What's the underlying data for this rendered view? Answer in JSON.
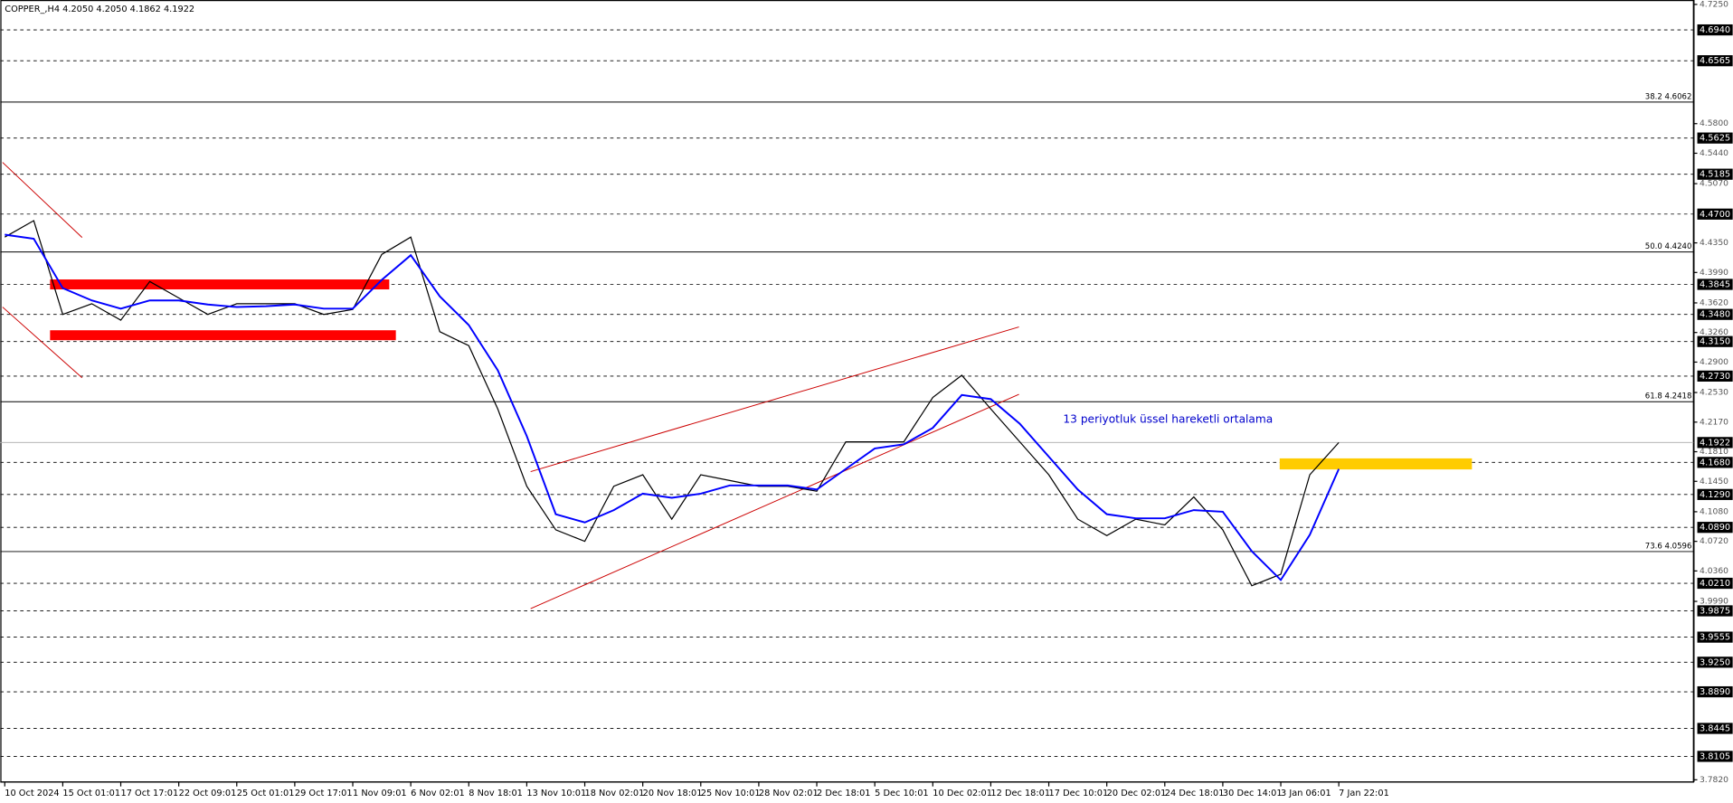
{
  "chart_data": {
    "type": "line",
    "title": "COPPER_,H4  4.2050 4.2050 4.1862 4.1922",
    "annotation": "13 periyotluk üssel hareketli ortalama",
    "categories": [
      "10 Oct 2024",
      null,
      "15 Oct 01:01",
      null,
      "17 Oct 17:01",
      null,
      "22 Oct 09:01",
      null,
      "25 Oct 01:01",
      null,
      "29 Oct 17:01",
      null,
      "1 Nov 09:01",
      null,
      "6 Nov 02:01",
      null,
      "8 Nov 18:01",
      null,
      "13 Nov 10:01",
      null,
      "18 Nov 02:01",
      null,
      "20 Nov 18:01",
      null,
      "25 Nov 10:01",
      null,
      "28 Nov 02:01",
      null,
      "2 Dec 18:01",
      null,
      "5 Dec 10:01",
      null,
      "10 Dec 02:01",
      null,
      "12 Dec 18:01",
      null,
      "17 Dec 10:01",
      null,
      "20 Dec 02:01",
      null,
      "24 Dec 18:01",
      null,
      "30 Dec 14:01",
      null,
      "3 Jan 06:01",
      null,
      "7 Jan 22:01",
      null,
      null,
      null,
      null,
      null,
      null,
      null,
      null,
      null,
      null,
      null
    ],
    "series": [
      {
        "color": "#000000",
        "values": [
          4.442,
          4.462,
          4.348,
          4.361,
          4.341,
          4.388,
          4.368,
          4.348,
          4.361,
          4.361,
          4.361,
          4.348,
          4.354,
          4.421,
          4.442,
          4.327,
          4.31,
          4.233,
          4.139,
          4.086,
          4.072,
          4.139,
          4.153,
          4.099,
          4.153,
          4.146,
          4.139,
          4.139,
          4.133,
          4.193,
          4.193,
          4.193,
          4.247,
          4.274,
          4.233,
          4.193,
          4.153,
          4.099,
          4.079,
          4.099,
          4.092,
          4.126,
          4.086,
          4.018,
          4.032,
          4.153,
          4.1922,
          null,
          null,
          null,
          null,
          null,
          null,
          null,
          null,
          null,
          null,
          null
        ]
      },
      {
        "color": "#0000ff",
        "values": [
          4.445,
          4.44,
          4.38,
          4.365,
          4.355,
          4.365,
          4.365,
          4.36,
          4.357,
          4.358,
          4.36,
          4.355,
          4.355,
          4.39,
          4.42,
          4.37,
          4.335,
          4.28,
          4.2,
          4.105,
          4.095,
          4.11,
          4.13,
          4.125,
          4.13,
          4.14,
          4.14,
          4.14,
          4.135,
          4.16,
          4.185,
          4.19,
          4.21,
          4.25,
          4.245,
          4.215,
          4.175,
          4.135,
          4.105,
          4.1,
          4.1,
          4.11,
          4.108,
          4.06,
          4.025,
          4.08,
          4.16,
          null,
          null,
          null,
          null,
          null,
          null,
          null,
          null,
          null,
          null,
          null
        ]
      }
    ],
    "ylim": [
      3.782,
      4.725
    ],
    "yticks": [
      {
        "value": 4.725,
        "label": "4.7250"
      },
      {
        "value": 4.58,
        "label": "4.5800"
      },
      {
        "value": 4.544,
        "label": "4.5440"
      },
      {
        "value": 4.507,
        "label": "4.5070"
      },
      {
        "value": 4.435,
        "label": "4.4350"
      },
      {
        "value": 4.399,
        "label": "4.3990"
      },
      {
        "value": 4.362,
        "label": "4.3620"
      },
      {
        "value": 4.326,
        "label": "4.3260"
      },
      {
        "value": 4.29,
        "label": "4.2900"
      },
      {
        "value": 4.253,
        "label": "4.2530"
      },
      {
        "value": 4.217,
        "label": "4.2170"
      },
      {
        "value": 4.181,
        "label": "4.1810"
      },
      {
        "value": 4.145,
        "label": "4.1450"
      },
      {
        "value": 4.108,
        "label": "4.1080"
      },
      {
        "value": 4.072,
        "label": "4.0720"
      },
      {
        "value": 4.036,
        "label": "4.0360"
      },
      {
        "value": 3.999,
        "label": "3.9990"
      },
      {
        "value": 3.782,
        "label": "3.7820"
      }
    ],
    "levels": [
      {
        "value": 4.694,
        "label": "4.6940"
      },
      {
        "value": 4.6565,
        "label": "4.6565"
      },
      {
        "value": 4.5625,
        "label": "4.5625"
      },
      {
        "value": 4.5185,
        "label": "4.5185"
      },
      {
        "value": 4.47,
        "label": "4.4700"
      },
      {
        "value": 4.3845,
        "label": "4.3845"
      },
      {
        "value": 4.348,
        "label": "4.3480"
      },
      {
        "value": 4.315,
        "label": "4.3150"
      },
      {
        "value": 4.273,
        "label": "4.2730"
      },
      {
        "value": 4.168,
        "label": "4.1680"
      },
      {
        "value": 4.129,
        "label": "4.1290"
      },
      {
        "value": 4.089,
        "label": "4.0890"
      },
      {
        "value": 4.021,
        "label": "4.0210"
      },
      {
        "value": 3.9875,
        "label": "3.9875"
      },
      {
        "value": 3.9555,
        "label": "3.9555"
      },
      {
        "value": 3.925,
        "label": "3.9250"
      },
      {
        "value": 3.889,
        "label": "3.8890"
      },
      {
        "value": 3.8445,
        "label": "3.8445"
      },
      {
        "value": 3.8105,
        "label": "3.8105"
      }
    ],
    "fib_levels": [
      {
        "value": 4.6062,
        "label": "38.2 4.6062"
      },
      {
        "value": 4.424,
        "label": "50.0 4.4240"
      },
      {
        "value": 4.2418,
        "label": "61.8 4.2418"
      },
      {
        "value": 4.0596,
        "label": "73.6 4.0596"
      }
    ],
    "current_price": {
      "value": 4.1922,
      "label": "4.1922"
    }
  }
}
